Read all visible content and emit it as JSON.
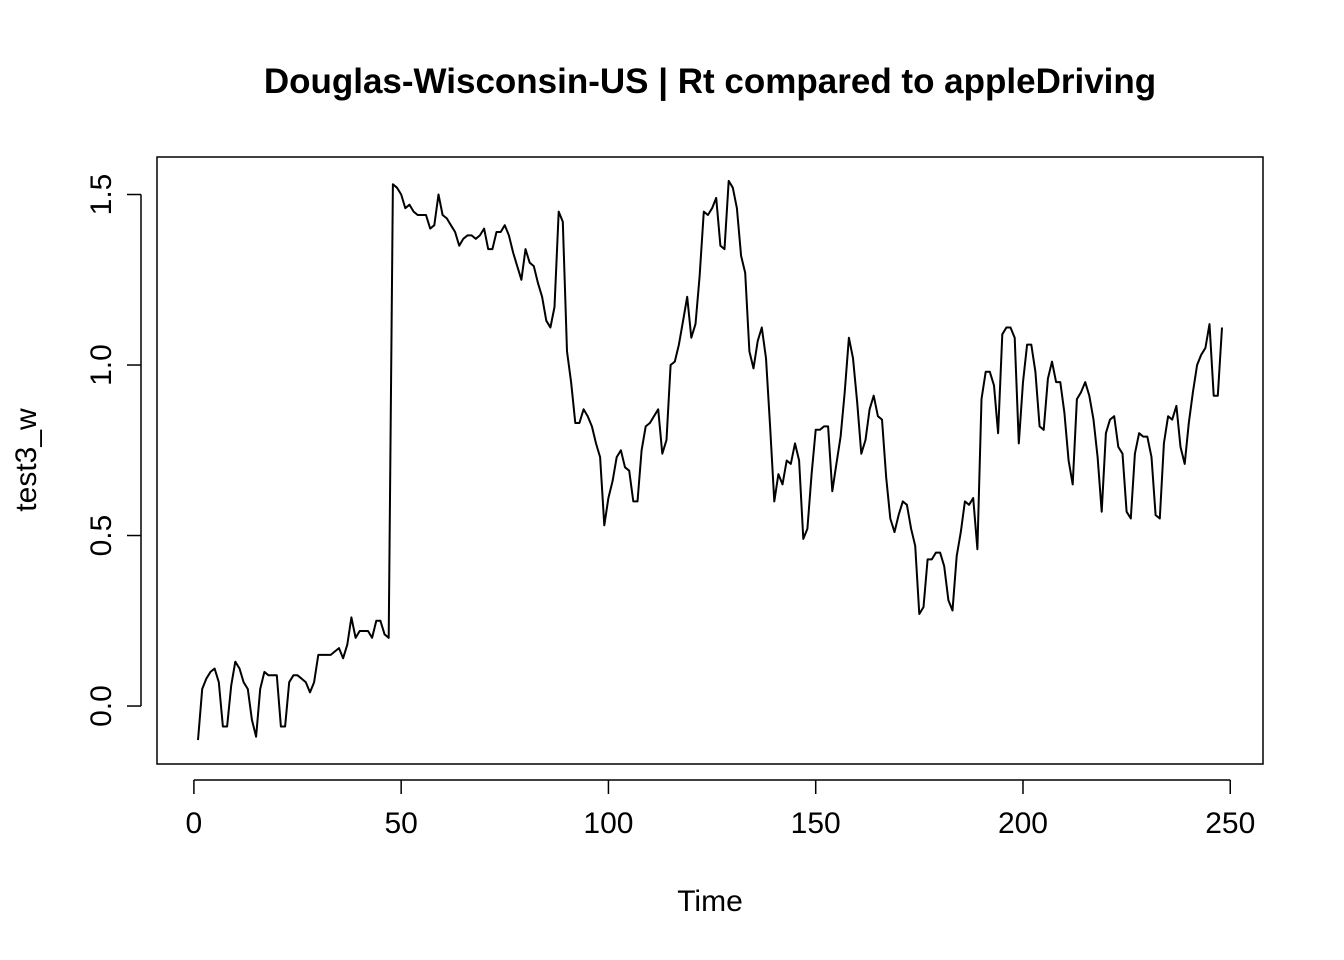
{
  "chart_data": {
    "type": "line",
    "title": "Douglas-Wisconsin-US | Rt compared to appleDriving",
    "xlabel": "Time",
    "ylabel": "test3_w",
    "xlim": [
      -8.9,
      257.9
    ],
    "ylim": [
      -0.17,
      1.61
    ],
    "grid": false,
    "legend": "none",
    "line_color": "#000000",
    "x_ticks": [
      0,
      50,
      100,
      150,
      200,
      250
    ],
    "x_tick_labels": [
      "0",
      "50",
      "100",
      "150",
      "200",
      "250"
    ],
    "y_ticks": [
      0.0,
      0.5,
      1.0,
      1.5
    ],
    "y_tick_labels": [
      "0.0",
      "0.5",
      "1.0",
      "1.5"
    ],
    "series": [
      {
        "x": [
          1,
          2,
          3,
          4,
          5,
          6,
          7,
          8,
          9,
          10,
          11,
          12,
          13,
          14,
          15,
          16,
          17,
          18,
          19,
          20,
          21,
          22,
          23,
          24,
          25,
          26,
          27,
          28,
          29,
          30,
          31,
          32,
          33,
          34,
          35,
          36,
          37,
          38,
          39,
          40,
          41,
          42,
          43,
          44,
          45,
          46,
          47,
          48,
          49,
          50,
          51,
          52,
          53,
          54,
          55,
          56,
          57,
          58,
          59,
          60,
          61,
          62,
          63,
          64,
          65,
          66,
          67,
          68,
          69,
          70,
          71,
          72,
          73,
          74,
          75,
          76,
          77,
          78,
          79,
          80,
          81,
          82,
          83,
          84,
          85,
          86,
          87,
          88,
          89,
          90,
          91,
          92,
          93,
          94,
          95,
          96,
          97,
          98,
          99,
          100,
          101,
          102,
          103,
          104,
          105,
          106,
          107,
          108,
          109,
          110,
          111,
          112,
          113,
          114,
          115,
          116,
          117,
          118,
          119,
          120,
          121,
          122,
          123,
          124,
          125,
          126,
          127,
          128,
          129,
          130,
          131,
          132,
          133,
          134,
          135,
          136,
          137,
          138,
          139,
          140,
          141,
          142,
          143,
          144,
          145,
          146,
          147,
          148,
          149,
          150,
          151,
          152,
          153,
          154,
          155,
          156,
          157,
          158,
          159,
          160,
          161,
          162,
          163,
          164,
          165,
          166,
          167,
          168,
          169,
          170,
          171,
          172,
          173,
          174,
          175,
          176,
          177,
          178,
          179,
          180,
          181,
          182,
          183,
          184,
          185,
          186,
          187,
          188,
          189,
          190,
          191,
          192,
          193,
          194,
          195,
          196,
          197,
          198,
          199,
          200,
          201,
          202,
          203,
          204,
          205,
          206,
          207,
          208,
          209,
          210,
          211,
          212,
          213,
          214,
          215,
          216,
          217,
          218,
          219,
          220,
          221,
          222,
          223,
          224,
          225,
          226,
          227,
          228,
          229,
          230,
          231,
          232,
          233,
          234,
          235,
          236,
          237,
          238,
          239,
          240,
          241,
          242,
          243,
          244,
          245,
          246,
          247,
          248
        ],
        "values": [
          -0.1,
          0.05,
          0.08,
          0.1,
          0.11,
          0.07,
          -0.06,
          -0.06,
          0.06,
          0.13,
          0.11,
          0.07,
          0.05,
          -0.04,
          -0.09,
          0.05,
          0.1,
          0.09,
          0.09,
          0.09,
          -0.06,
          -0.06,
          0.07,
          0.09,
          0.09,
          0.08,
          0.07,
          0.04,
          0.07,
          0.15,
          0.15,
          0.15,
          0.15,
          0.16,
          0.17,
          0.14,
          0.18,
          0.26,
          0.2,
          0.22,
          0.22,
          0.22,
          0.2,
          0.25,
          0.25,
          0.21,
          0.2,
          1.53,
          1.52,
          1.5,
          1.46,
          1.47,
          1.45,
          1.44,
          1.44,
          1.44,
          1.4,
          1.41,
          1.5,
          1.44,
          1.43,
          1.41,
          1.39,
          1.35,
          1.37,
          1.38,
          1.38,
          1.37,
          1.38,
          1.4,
          1.34,
          1.34,
          1.39,
          1.39,
          1.41,
          1.38,
          1.33,
          1.29,
          1.25,
          1.34,
          1.3,
          1.29,
          1.24,
          1.2,
          1.13,
          1.11,
          1.17,
          1.45,
          1.42,
          1.04,
          0.95,
          0.83,
          0.83,
          0.87,
          0.85,
          0.82,
          0.77,
          0.73,
          0.53,
          0.61,
          0.66,
          0.73,
          0.75,
          0.7,
          0.69,
          0.6,
          0.6,
          0.75,
          0.82,
          0.83,
          0.85,
          0.87,
          0.74,
          0.78,
          1.0,
          1.01,
          1.06,
          1.13,
          1.2,
          1.08,
          1.12,
          1.26,
          1.45,
          1.44,
          1.46,
          1.49,
          1.35,
          1.34,
          1.54,
          1.52,
          1.46,
          1.32,
          1.27,
          1.04,
          0.99,
          1.07,
          1.11,
          1.02,
          0.82,
          0.6,
          0.68,
          0.65,
          0.72,
          0.71,
          0.77,
          0.72,
          0.49,
          0.52,
          0.68,
          0.81,
          0.81,
          0.82,
          0.82,
          0.63,
          0.71,
          0.79,
          0.92,
          1.08,
          1.02,
          0.89,
          0.74,
          0.78,
          0.87,
          0.91,
          0.85,
          0.84,
          0.67,
          0.55,
          0.51,
          0.56,
          0.6,
          0.59,
          0.52,
          0.47,
          0.27,
          0.29,
          0.43,
          0.43,
          0.45,
          0.45,
          0.41,
          0.31,
          0.28,
          0.44,
          0.51,
          0.6,
          0.59,
          0.61,
          0.46,
          0.9,
          0.98,
          0.98,
          0.94,
          0.8,
          1.09,
          1.11,
          1.11,
          1.08,
          0.77,
          0.95,
          1.06,
          1.06,
          0.98,
          0.82,
          0.81,
          0.96,
          1.01,
          0.95,
          0.95,
          0.86,
          0.72,
          0.65,
          0.9,
          0.92,
          0.95,
          0.91,
          0.84,
          0.73,
          0.57,
          0.8,
          0.84,
          0.85,
          0.76,
          0.74,
          0.57,
          0.55,
          0.74,
          0.8,
          0.79,
          0.79,
          0.73,
          0.56,
          0.55,
          0.77,
          0.85,
          0.84,
          0.88,
          0.76,
          0.71,
          0.83,
          0.92,
          1.0,
          1.03,
          1.05,
          1.12,
          0.91,
          0.91,
          1.11
        ]
      }
    ]
  }
}
